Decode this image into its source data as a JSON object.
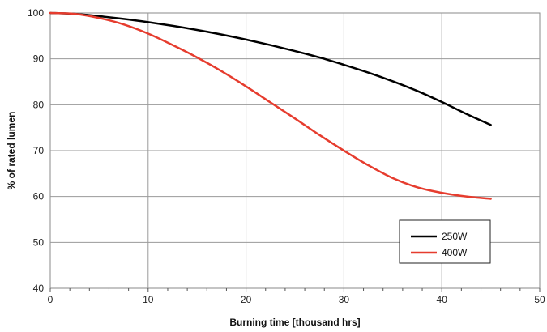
{
  "chart_data": {
    "type": "line",
    "xlabel": "Burning time [thousand hrs]",
    "ylabel": "% of rated lumen",
    "xlim": [
      0,
      50
    ],
    "ylim": [
      40,
      100
    ],
    "x_ticks": [
      "0",
      "10",
      "20",
      "30",
      "40",
      "50"
    ],
    "y_ticks": [
      "40",
      "50",
      "60",
      "70",
      "80",
      "90",
      "100"
    ],
    "grid": true,
    "legend_position": "bottom-right",
    "series": [
      {
        "name": "250W",
        "color": "#000000",
        "x": [
          0,
          2.5,
          5,
          7.5,
          10,
          12.5,
          15,
          17.5,
          20,
          22.5,
          25,
          27.5,
          30,
          32.5,
          35,
          37.5,
          40,
          42.5,
          45
        ],
        "y": [
          100,
          99.8,
          99.3,
          98.7,
          98.0,
          97.2,
          96.3,
          95.3,
          94.2,
          93.0,
          91.7,
          90.3,
          88.7,
          87.0,
          85.1,
          83.0,
          80.6,
          78.0,
          75.6
        ]
      },
      {
        "name": "400W",
        "color": "#e63c2e",
        "x": [
          0,
          2.5,
          5,
          7.5,
          10,
          12.5,
          15,
          17.5,
          20,
          22.5,
          25,
          27.5,
          30,
          32.5,
          35,
          37.5,
          40,
          42.5,
          45
        ],
        "y": [
          100,
          99.8,
          98.9,
          97.5,
          95.5,
          93.0,
          90.3,
          87.3,
          84.0,
          80.5,
          77.0,
          73.4,
          70.0,
          66.8,
          64.0,
          62.0,
          60.8,
          60.0,
          59.5
        ]
      }
    ]
  }
}
